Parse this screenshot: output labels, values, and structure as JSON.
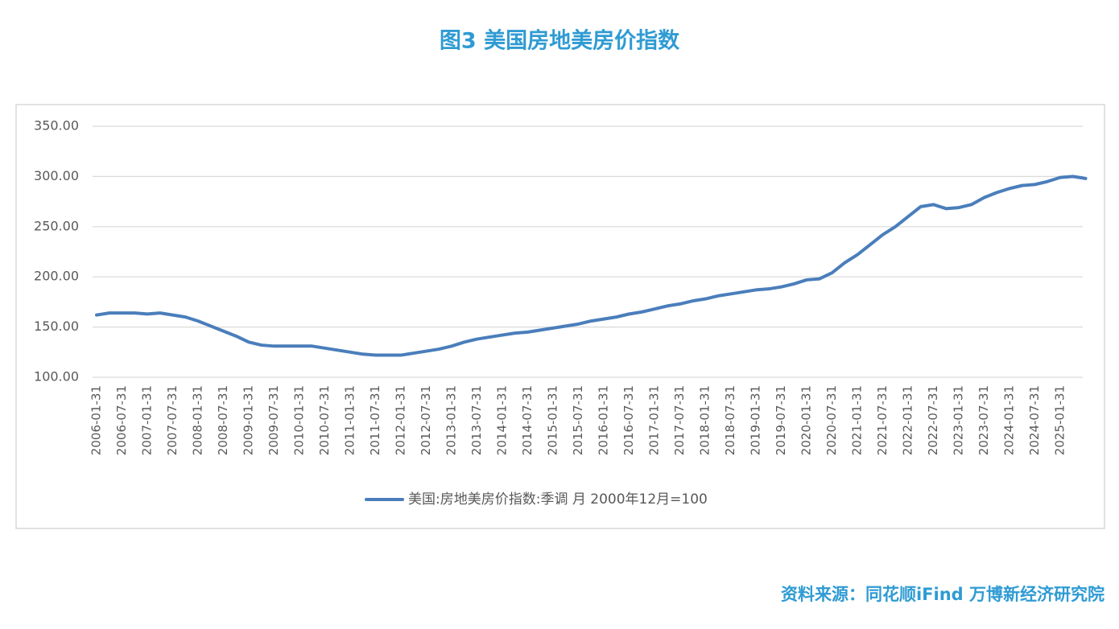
{
  "chart_data": {
    "type": "line",
    "title": "图3 美国房地美房价指数",
    "source": "资料来源：同花顺iFind 万博新经济研究院",
    "categories": [
      "2006-01-31",
      null,
      "2006-07-31",
      null,
      "2007-01-31",
      null,
      "2007-07-31",
      null,
      "2008-01-31",
      null,
      "2008-07-31",
      null,
      "2009-01-31",
      null,
      "2009-07-31",
      null,
      "2010-01-31",
      null,
      "2010-07-31",
      null,
      "2011-01-31",
      null,
      "2011-07-31",
      null,
      "2012-01-31",
      null,
      "2012-07-31",
      null,
      "2013-01-31",
      null,
      "2013-07-31",
      null,
      "2014-01-31",
      null,
      "2014-07-31",
      null,
      "2015-01-31",
      null,
      "2015-07-31",
      null,
      "2016-01-31",
      null,
      "2016-07-31",
      null,
      "2017-01-31",
      null,
      "2017-07-31",
      null,
      "2018-01-31",
      null,
      "2018-07-31",
      null,
      "2019-01-31",
      null,
      "2019-07-31",
      null,
      "2020-01-31",
      null,
      "2020-07-31",
      null,
      "2021-01-31",
      null,
      "2021-07-31",
      null,
      "2022-01-31",
      null,
      "2022-07-31",
      null,
      "2023-01-31",
      null,
      "2023-07-31",
      null,
      "2024-01-31",
      null,
      "2024-07-31",
      null,
      "2025-01-31",
      null,
      null
    ],
    "series": [
      {
        "name": "美国:房地美房价指数:季调 月 2000年12月=100",
        "color": "#4a7ebb",
        "values": [
          162,
          164,
          164,
          164,
          163,
          164,
          162,
          160,
          156,
          151,
          146,
          141,
          135,
          132,
          131,
          131,
          131,
          131,
          129,
          127,
          125,
          123,
          122,
          122,
          122,
          124,
          126,
          128,
          131,
          135,
          138,
          140,
          142,
          144,
          145,
          147,
          149,
          151,
          153,
          156,
          158,
          160,
          163,
          165,
          168,
          171,
          173,
          176,
          178,
          181,
          183,
          185,
          187,
          188,
          190,
          193,
          197,
          198,
          204,
          214,
          222,
          232,
          242,
          250,
          260,
          270,
          272,
          268,
          269,
          272,
          279,
          284,
          288,
          291,
          292,
          295,
          299,
          300,
          298
        ]
      }
    ],
    "ylim": [
      100,
      350
    ],
    "yticks": [
      {
        "value": 100,
        "label": "100.00"
      },
      {
        "value": 150,
        "label": "150.00"
      },
      {
        "value": 200,
        "label": "200.00"
      },
      {
        "value": 250,
        "label": "250.00"
      },
      {
        "value": 300,
        "label": "300.00"
      },
      {
        "value": 350,
        "label": "350.00"
      }
    ],
    "grid": true,
    "legend": "bottom"
  }
}
